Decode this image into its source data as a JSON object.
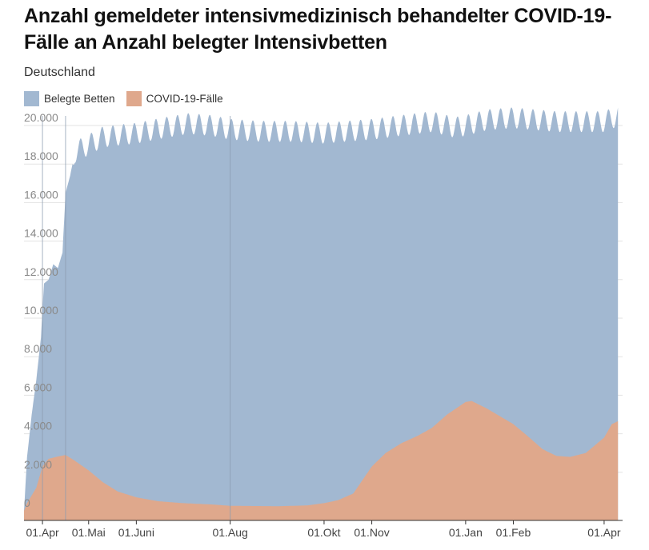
{
  "chart_data": {
    "type": "area",
    "title": "Anzahl gemeldeter intensivmedizinisch behandelter COVID-19-Fälle an Anzahl belegter Intensivbetten",
    "subtitle": "Deutschland",
    "ylim": [
      0,
      21000
    ],
    "yticks": [
      0,
      2000,
      4000,
      6000,
      8000,
      10000,
      12000,
      14000,
      16000,
      18000,
      20000
    ],
    "ytick_labels": [
      "0",
      "2.000",
      "4.000",
      "6.000",
      "8.000",
      "10.000",
      "12.000",
      "14.000",
      "16.000",
      "18.000",
      "20.000"
    ],
    "xlim": [
      "2020-03-20",
      "2021-04-13"
    ],
    "xticks": [
      {
        "date": "2020-04-01",
        "label": "01.Apr"
      },
      {
        "date": "2020-05-01",
        "label": "01.Mai"
      },
      {
        "date": "2020-06-01",
        "label": "01.Juni"
      },
      {
        "date": "2020-08-01",
        "label": "01.Aug"
      },
      {
        "date": "2020-10-01",
        "label": "01.Okt"
      },
      {
        "date": "2020-11-01",
        "label": "01.Nov"
      },
      {
        "date": "2021-01-01",
        "label": "01.Jan"
      },
      {
        "date": "2021-02-01",
        "label": "01.Feb"
      },
      {
        "date": "2021-04-01",
        "label": "01.Apr"
      }
    ],
    "vertical_lines": [
      "2020-04-01",
      "2020-04-16",
      "2020-08-01"
    ],
    "weekly_oscillation": true,
    "series": [
      {
        "name": "Belegte Betten",
        "color": "#a2b8d1",
        "points": [
          [
            "2020-03-20",
            0
          ],
          [
            "2020-03-22",
            2800
          ],
          [
            "2020-03-25",
            5000
          ],
          [
            "2020-03-28",
            6800
          ],
          [
            "2020-03-31",
            9000
          ],
          [
            "2020-04-02",
            11800
          ],
          [
            "2020-04-05",
            12000
          ],
          [
            "2020-04-08",
            12800
          ],
          [
            "2020-04-11",
            12600
          ],
          [
            "2020-04-14",
            13400
          ],
          [
            "2020-04-16",
            16500
          ],
          [
            "2020-04-19",
            17400
          ],
          [
            "2020-04-22",
            18600
          ],
          [
            "2020-04-26",
            18800
          ],
          [
            "2020-05-01",
            19000
          ],
          [
            "2020-05-10",
            19400
          ],
          [
            "2020-05-20",
            19500
          ],
          [
            "2020-06-01",
            19600
          ],
          [
            "2020-06-20",
            19900
          ],
          [
            "2020-07-05",
            20100
          ],
          [
            "2020-07-20",
            20000
          ],
          [
            "2020-08-01",
            19800
          ],
          [
            "2020-08-20",
            19700
          ],
          [
            "2020-09-10",
            19700
          ],
          [
            "2020-10-01",
            19600
          ],
          [
            "2020-10-15",
            19700
          ],
          [
            "2020-11-01",
            19800
          ],
          [
            "2020-11-20",
            20000
          ],
          [
            "2020-12-10",
            20200
          ],
          [
            "2020-12-25",
            19900
          ],
          [
            "2021-01-01",
            20000
          ],
          [
            "2021-01-15",
            20300
          ],
          [
            "2021-02-01",
            20400
          ],
          [
            "2021-02-15",
            20300
          ],
          [
            "2021-03-01",
            20200
          ],
          [
            "2021-03-20",
            20200
          ],
          [
            "2021-04-01",
            20200
          ],
          [
            "2021-04-10",
            20500
          ]
        ]
      },
      {
        "name": "COVID-19-Fälle",
        "color": "#dfa88c",
        "points": [
          [
            "2020-03-20",
            0
          ],
          [
            "2020-03-22",
            400
          ],
          [
            "2020-03-25",
            800
          ],
          [
            "2020-03-28",
            1200
          ],
          [
            "2020-04-01",
            2300
          ],
          [
            "2020-04-05",
            2700
          ],
          [
            "2020-04-10",
            2800
          ],
          [
            "2020-04-16",
            2900
          ],
          [
            "2020-04-22",
            2600
          ],
          [
            "2020-05-01",
            2100
          ],
          [
            "2020-05-10",
            1500
          ],
          [
            "2020-05-20",
            1000
          ],
          [
            "2020-06-01",
            700
          ],
          [
            "2020-06-15",
            500
          ],
          [
            "2020-07-01",
            400
          ],
          [
            "2020-07-20",
            330
          ],
          [
            "2020-08-01",
            260
          ],
          [
            "2020-09-01",
            240
          ],
          [
            "2020-09-20",
            280
          ],
          [
            "2020-10-01",
            400
          ],
          [
            "2020-10-10",
            550
          ],
          [
            "2020-10-20",
            900
          ],
          [
            "2020-11-01",
            2300
          ],
          [
            "2020-11-10",
            3000
          ],
          [
            "2020-11-20",
            3500
          ],
          [
            "2020-12-01",
            3900
          ],
          [
            "2020-12-10",
            4300
          ],
          [
            "2020-12-20",
            5000
          ],
          [
            "2021-01-01",
            5650
          ],
          [
            "2021-01-05",
            5700
          ],
          [
            "2021-01-15",
            5300
          ],
          [
            "2021-02-01",
            4500
          ],
          [
            "2021-02-10",
            3900
          ],
          [
            "2021-02-20",
            3200
          ],
          [
            "2021-03-01",
            2850
          ],
          [
            "2021-03-10",
            2800
          ],
          [
            "2021-03-20",
            3000
          ],
          [
            "2021-04-01",
            3800
          ],
          [
            "2021-04-06",
            4500
          ],
          [
            "2021-04-10",
            4650
          ]
        ]
      }
    ]
  }
}
